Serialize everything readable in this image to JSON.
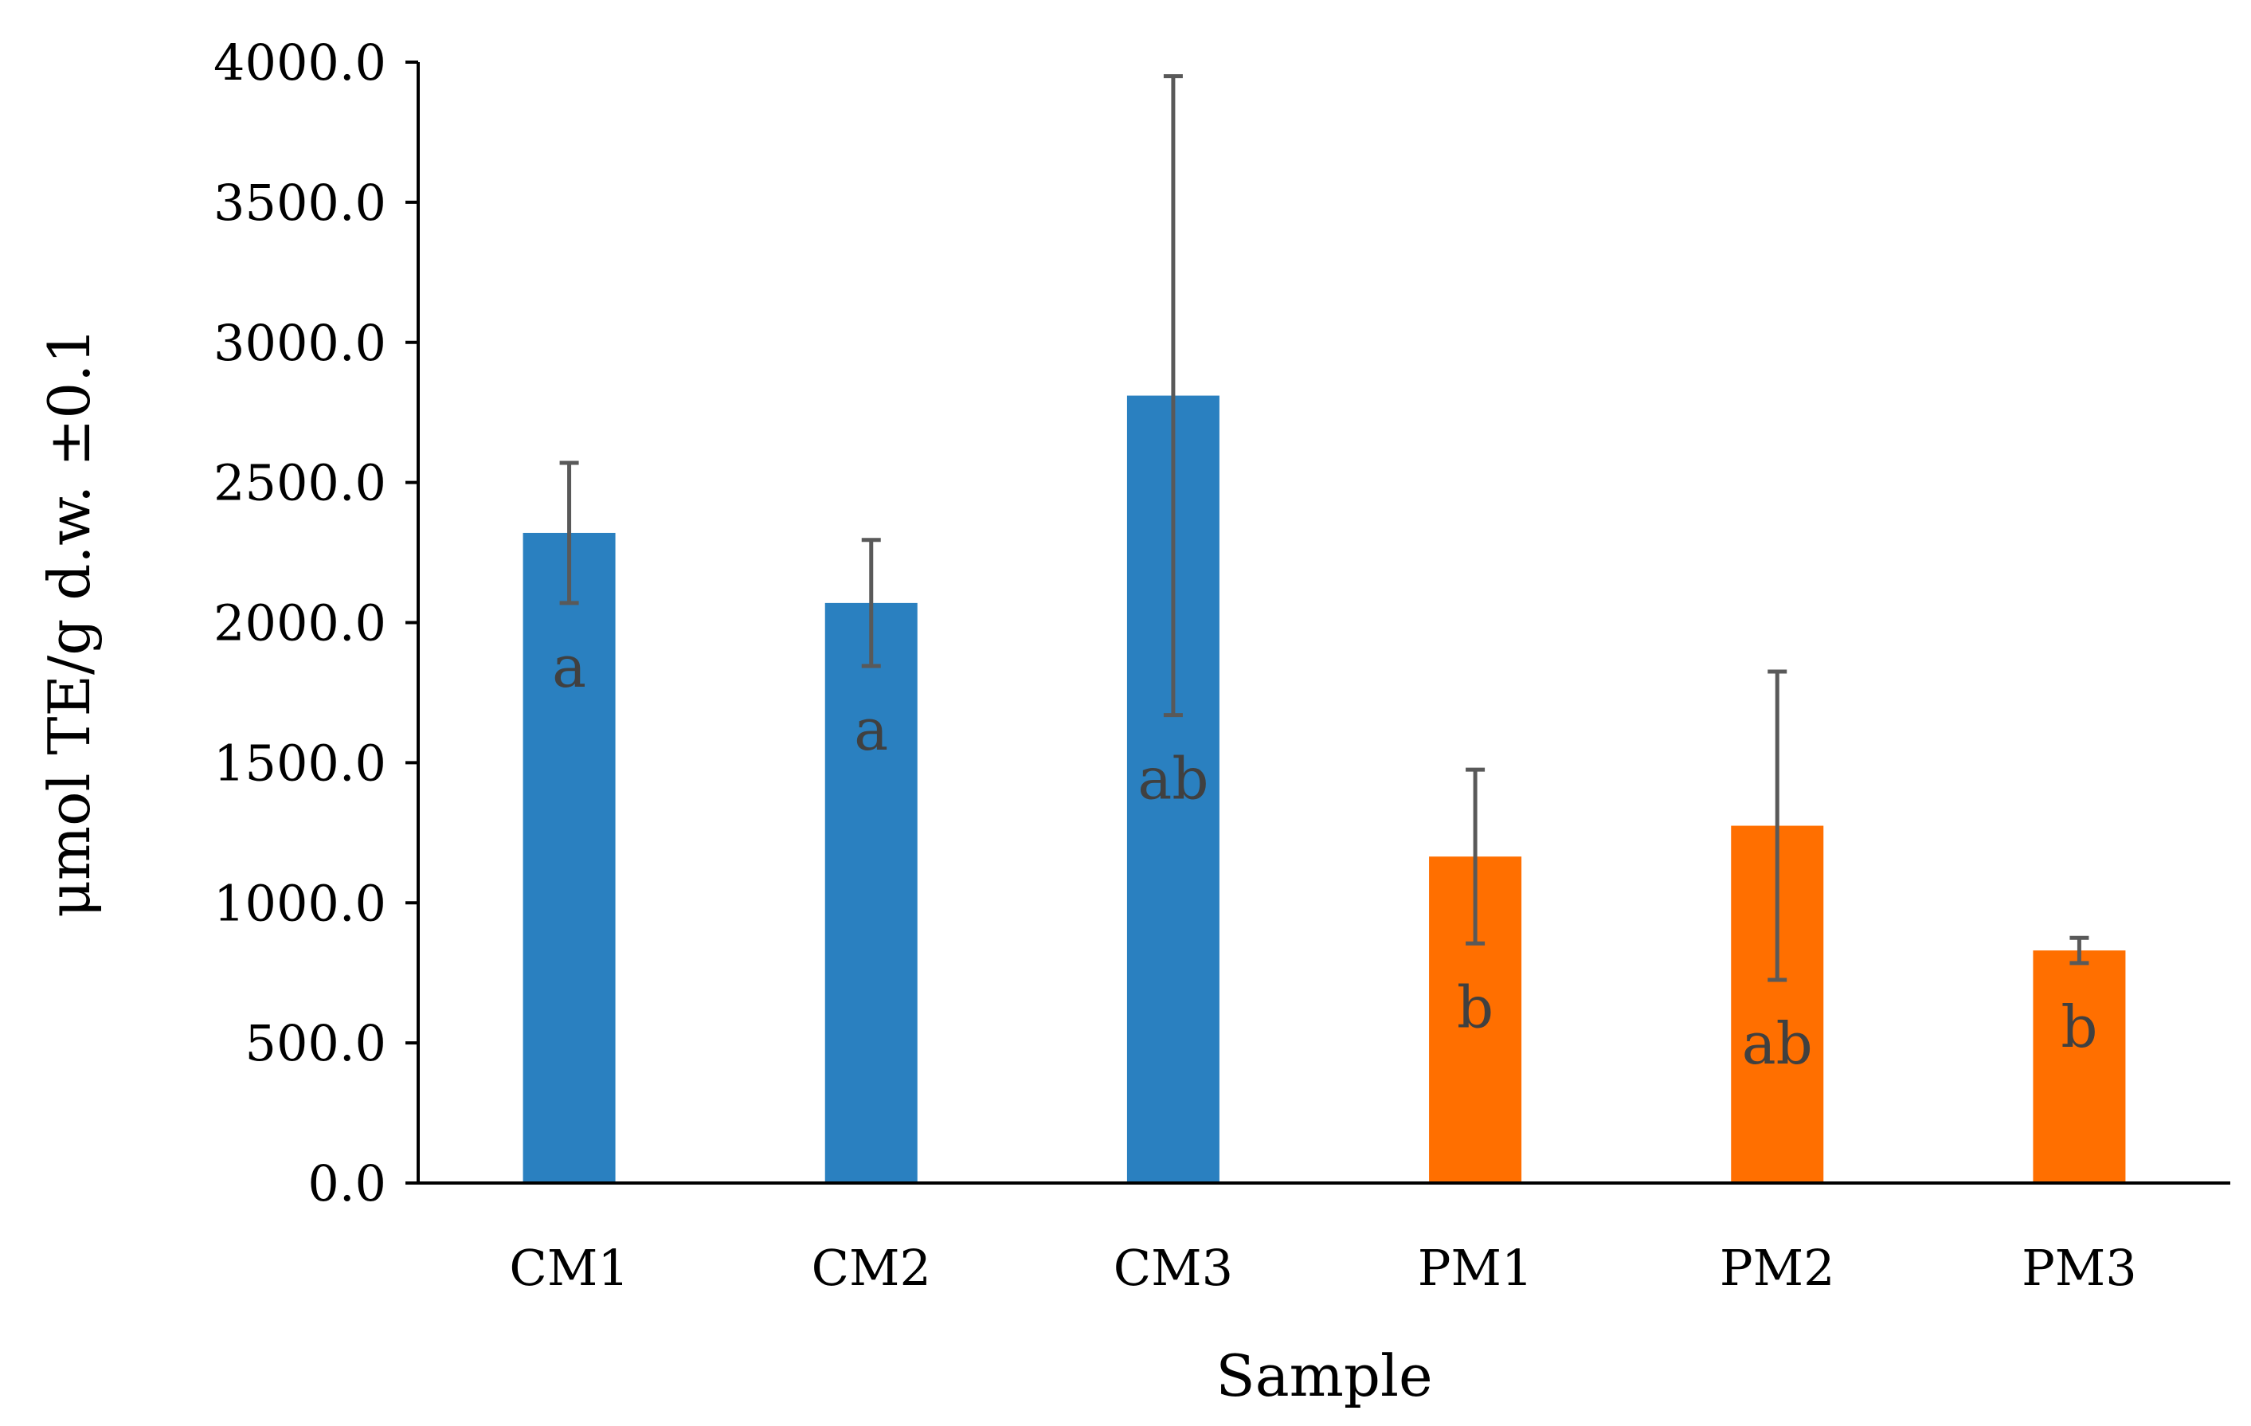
{
  "chart_data": {
    "type": "bar",
    "title": "",
    "xlabel": "Sample",
    "ylabel": "μmol TE/g d.w. ±0.1",
    "ylim": [
      0,
      4000
    ],
    "y_ticks": [
      0,
      500,
      1000,
      1500,
      2000,
      2500,
      3000,
      3500,
      4000
    ],
    "y_tick_labels": [
      "0.0",
      "500.0",
      "1000.0",
      "1500.0",
      "2000.0",
      "2500.0",
      "3000.0",
      "3500.0",
      "4000.0"
    ],
    "categories": [
      "CM1",
      "CM2",
      "CM3",
      "PM1",
      "PM2",
      "PM3"
    ],
    "values": [
      2320,
      2070,
      2810,
      1165,
      1275,
      830
    ],
    "errors": [
      250,
      225,
      1140,
      310,
      550,
      45
    ],
    "letters": [
      "a",
      "a",
      "ab",
      "b",
      "ab",
      "b"
    ],
    "bar_colors": [
      "#2a80c0",
      "#2a80c0",
      "#2a80c0",
      "#ff6f00",
      "#ff6f00",
      "#ff6f00"
    ],
    "error_bar_color": "#595959",
    "grid": false,
    "legend": "none"
  }
}
